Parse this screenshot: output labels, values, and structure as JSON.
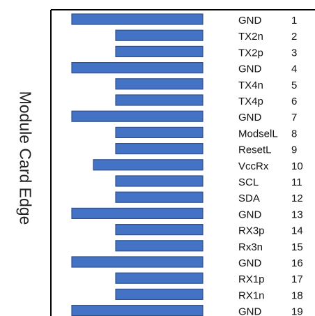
{
  "side_label": "Module Card Edge",
  "colors": {
    "pad_fill": "#4472c4",
    "pad_stroke": "#2f4f8a",
    "border": "#000000"
  },
  "pins": [
    {
      "name": "GND",
      "number": "1",
      "pad": "long"
    },
    {
      "name": "TX2n",
      "number": "2",
      "pad": "short"
    },
    {
      "name": "TX2p",
      "number": "3",
      "pad": "short"
    },
    {
      "name": "GND",
      "number": "4",
      "pad": "long"
    },
    {
      "name": "TX4n",
      "number": "5",
      "pad": "short"
    },
    {
      "name": "TX4p",
      "number": "6",
      "pad": "short"
    },
    {
      "name": "GND",
      "number": "7",
      "pad": "long"
    },
    {
      "name": "ModselL",
      "number": "8",
      "pad": "short"
    },
    {
      "name": "ResetL",
      "number": "9",
      "pad": "short"
    },
    {
      "name": "VccRx",
      "number": "10",
      "pad": "medium"
    },
    {
      "name": "SCL",
      "number": "11",
      "pad": "short"
    },
    {
      "name": "SDA",
      "number": "12",
      "pad": "short"
    },
    {
      "name": "GND",
      "number": "13",
      "pad": "long"
    },
    {
      "name": "RX3p",
      "number": "14",
      "pad": "short"
    },
    {
      "name": "Rx3n",
      "number": "15",
      "pad": "short"
    },
    {
      "name": "GND",
      "number": "16",
      "pad": "long"
    },
    {
      "name": "RX1p",
      "number": "17",
      "pad": "short"
    },
    {
      "name": "RX1n",
      "number": "18",
      "pad": "short"
    },
    {
      "name": "GND",
      "number": "19",
      "pad": "long"
    }
  ]
}
